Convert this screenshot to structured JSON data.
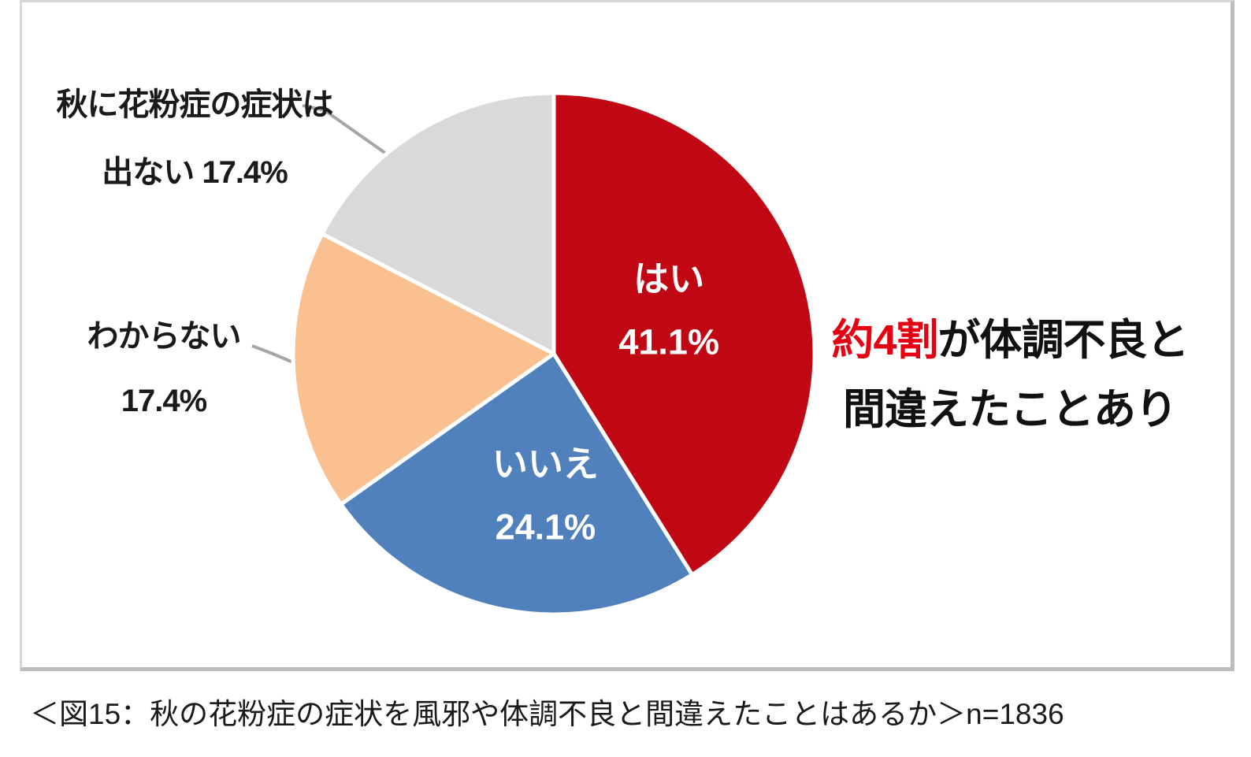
{
  "chart_data": {
    "type": "pie",
    "title": "",
    "slices": [
      {
        "label": "はい",
        "value": 41.1,
        "color": "#c10713",
        "text_color": "#ffffff",
        "label_placement": "inside"
      },
      {
        "label": "いいえ",
        "value": 24.1,
        "color": "#5081bd",
        "text_color": "#ffffff",
        "label_placement": "inside"
      },
      {
        "label": "わからない",
        "value": 17.4,
        "color": "#fac08f",
        "text_color": "#1a1a1a",
        "label_placement": "outside"
      },
      {
        "label": "秋に花粉症の症状は出ない",
        "value": 17.4,
        "color": "#d9d9d9",
        "text_color": "#1a1a1a",
        "label_placement": "outside"
      }
    ],
    "start_angle_deg": 0,
    "direction": "clockwise",
    "slice_border_color": "#ffffff",
    "sample_size": "n=1836",
    "annotations": [
      "約4割が体調不良と間違えたことあり"
    ]
  },
  "labels": {
    "no_symptoms_line1": "秋に花粉症の症状は",
    "no_symptoms_line2": "出ない 17.4%",
    "dont_know_line1": "わからない",
    "dont_know_line2": "17.4%"
  },
  "annotation": {
    "highlight": "約4割",
    "rest_line1": "が体調不良と",
    "line2": "間違えたことあり",
    "highlight_color": "#e60012"
  },
  "caption": {
    "text": "＜図15：秋の花粉症の症状を風邪や体調不良と間違えたことはあるか＞n=1836"
  }
}
